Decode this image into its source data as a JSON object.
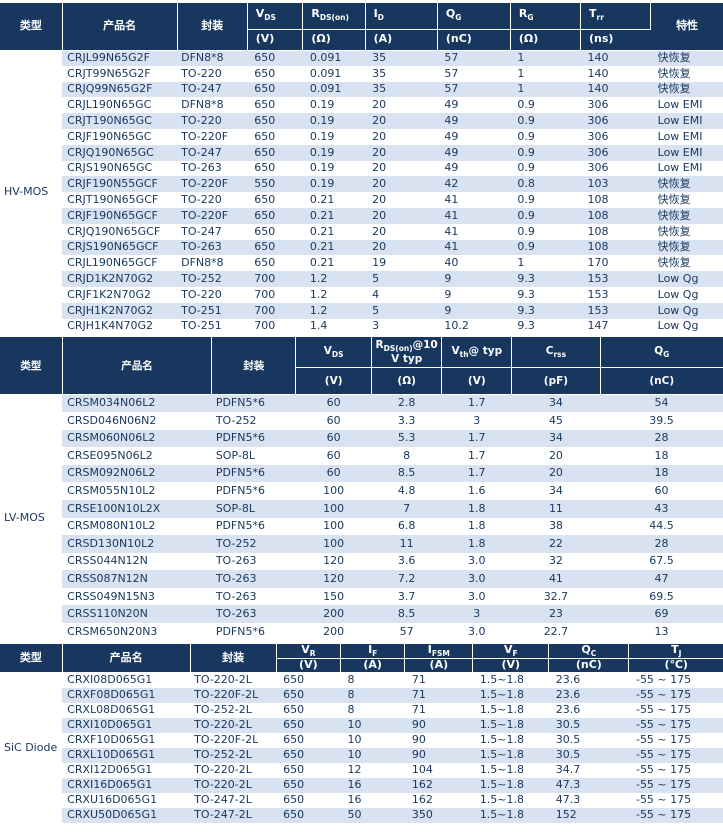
{
  "colors": {
    "header_bg": "#17375e",
    "header_text": "#ffffff",
    "row_alt": "#d9e2f1",
    "row_white": "#ffffff",
    "text": "#17375e",
    "page_bg": "#ffffff"
  },
  "sections": [
    {
      "key": "hv-mos",
      "type_label": "HV-MOS",
      "cols": [
        {
          "w": 8.6,
          "plain": true,
          "key": "type",
          "label": "类型"
        },
        {
          "w": 15.9,
          "plain": true,
          "key": "name",
          "label": "产品名",
          "cls": "name"
        },
        {
          "w": 9.7,
          "plain": true,
          "key": "pkg",
          "label": "封装",
          "cls": "pkg"
        },
        {
          "w": 7.7,
          "key": "vds",
          "main": "V",
          "sub": "DS",
          "unit": "(V)",
          "cls": "num"
        },
        {
          "w": 8.6,
          "key": "rds-on",
          "main": "R",
          "sub": "DS(on)",
          "unit": "(Ω)",
          "cls": "num"
        },
        {
          "w": 10.0,
          "key": "id",
          "main": "I",
          "sub": "D",
          "unit": "(A)",
          "cls": "num"
        },
        {
          "w": 10.1,
          "key": "qg",
          "main": "Q",
          "sub": "G",
          "unit": "(nC)",
          "cls": "num"
        },
        {
          "w": 9.7,
          "key": "rg",
          "main": "R",
          "sub": "G",
          "unit": "(Ω)",
          "cls": "num"
        },
        {
          "w": 9.7,
          "key": "trr",
          "main": "T",
          "sub": "rr",
          "unit": "(ns)",
          "cls": "num"
        },
        {
          "w": 10.0,
          "plain": true,
          "key": "feature",
          "label": "特性",
          "cls": "feat"
        }
      ],
      "rows": [
        [
          "CRJL99N65G2F",
          "DFN8*8",
          "650",
          "0.091",
          "35",
          "57",
          "1",
          "140",
          "快恢复"
        ],
        [
          "CRJT99N65G2F",
          "TO-220",
          "650",
          "0.091",
          "35",
          "57",
          "1",
          "140",
          "快恢复"
        ],
        [
          "CRJQ99N65G2F",
          "TO-247",
          "650",
          "0.091",
          "35",
          "57",
          "1",
          "140",
          "快恢复"
        ],
        [
          "CRJL190N65GC",
          "DFN8*8",
          "650",
          "0.19",
          "20",
          "49",
          "0.9",
          "306",
          "Low EMI"
        ],
        [
          "CRJT190N65GC",
          "TO-220",
          "650",
          "0.19",
          "20",
          "49",
          "0.9",
          "306",
          "Low EMI"
        ],
        [
          "CRJF190N65GC",
          "TO-220F",
          "650",
          "0.19",
          "20",
          "49",
          "0.9",
          "306",
          "Low EMI"
        ],
        [
          "CRJQ190N65GC",
          "TO-247",
          "650",
          "0.19",
          "20",
          "49",
          "0.9",
          "306",
          "Low EMI"
        ],
        [
          "CRJS190N65GC",
          "TO-263",
          "650",
          "0.19",
          "20",
          "49",
          "0.9",
          "306",
          "Low EMI"
        ],
        [
          "CRJF190N55GCF",
          "TO-220F",
          "550",
          "0.19",
          "20",
          "42",
          "0.8",
          "103",
          "快恢复"
        ],
        [
          "CRJT190N65GCF",
          "TO-220",
          "650",
          "0.21",
          "20",
          "41",
          "0.9",
          "108",
          "快恢复"
        ],
        [
          "CRJF190N65GCF",
          "TO-220F",
          "650",
          "0.21",
          "20",
          "41",
          "0.9",
          "108",
          "快恢复"
        ],
        [
          "CRJQ190N65GCF",
          "TO-247",
          "650",
          "0.21",
          "20",
          "41",
          "0.9",
          "108",
          "快恢复"
        ],
        [
          "CRJS190N65GCF",
          "TO-263",
          "650",
          "0.21",
          "20",
          "41",
          "0.9",
          "108",
          "快恢复"
        ],
        [
          "CRJL190N65GCF",
          "DFN8*8",
          "650",
          "0.21",
          "19",
          "40",
          "1",
          "170",
          "快恢复"
        ],
        [
          "CRJD1K2N70G2",
          "TO-252",
          "700",
          "1.2",
          "5",
          "9",
          "9.3",
          "153",
          "Low Qg"
        ],
        [
          "CRJF1K2N70G2",
          "TO-220",
          "700",
          "1.2",
          "4",
          "9",
          "9.3",
          "153",
          "Low Qg"
        ],
        [
          "CRJH1K2N70G2",
          "TO-251",
          "700",
          "1.2",
          "5",
          "9",
          "9.3",
          "153",
          "Low Qg"
        ],
        [
          "CRJH1K4N70G2",
          "TO-251",
          "700",
          "1.4",
          "3",
          "10.2",
          "9.3",
          "147",
          "Low Qg"
        ]
      ]
    },
    {
      "key": "lv-mos",
      "type_label": "LV-MOS",
      "cols": [
        {
          "w": 8.6,
          "plain": true,
          "key": "type",
          "label": "类型"
        },
        {
          "w": 20.7,
          "plain": true,
          "key": "name",
          "label": "产品名",
          "cls": "name"
        },
        {
          "w": 11.6,
          "plain": true,
          "key": "pkg",
          "label": "封装",
          "cls": "pkg"
        },
        {
          "w": 10.5,
          "key": "vds",
          "main": "V",
          "sub": "DS",
          "unit": "(V)",
          "cls": "num"
        },
        {
          "w": 9.7,
          "key": "rds-on-10v",
          "main": "R",
          "sub": "DS(on)",
          "rest": "@10",
          "line2": "V typ",
          "unit": "(Ω)",
          "cls": "num"
        },
        {
          "w": 9.7,
          "key": "vth",
          "main": "V",
          "sub": "th",
          "rest": "@ typ",
          "unit": "(V)",
          "cls": "num"
        },
        {
          "w": 12.2,
          "key": "crss",
          "main": "C",
          "sub": "rss",
          "unit": "(pF)",
          "cls": "num"
        },
        {
          "w": 17.0,
          "key": "qg",
          "main": "Q",
          "sub": "G",
          "unit": "(nC)",
          "cls": "num"
        }
      ],
      "rows": [
        [
          "CRSM034N06L2",
          "PDFN5*6",
          "60",
          "2.8",
          "1.7",
          "34",
          "54"
        ],
        [
          "CRSD046N06N2",
          "TO-252",
          "60",
          "3.3",
          "3",
          "45",
          "39.5"
        ],
        [
          "CRSM060N06L2",
          "PDFN5*6",
          "60",
          "5.3",
          "1.7",
          "34",
          "28"
        ],
        [
          "CRSE095N06L2",
          "SOP-8L",
          "60",
          "8",
          "1.7",
          "20",
          "18"
        ],
        [
          "CRSM092N06L2",
          "PDFN5*6",
          "60",
          "8.5",
          "1.7",
          "20",
          "18"
        ],
        [
          "CRSM055N10L2",
          "PDFN5*6",
          "100",
          "4.8",
          "1.6",
          "34",
          "60"
        ],
        [
          "CRSE100N10L2X",
          "SOP-8L",
          "100",
          "7",
          "1.8",
          "11",
          "43"
        ],
        [
          "CRSM080N10L2",
          "PDFN5*6",
          "100",
          "6.8",
          "1.8",
          "38",
          "44.5"
        ],
        [
          "CRSD130N10L2",
          "TO-252",
          "100",
          "11",
          "1.8",
          "22",
          "28"
        ],
        [
          "CRSS044N12N",
          "TO-263",
          "120",
          "3.6",
          "3.0",
          "32",
          "67.5"
        ],
        [
          "CRSS087N12N",
          "TO-263",
          "120",
          "7.2",
          "3.0",
          "41",
          "47"
        ],
        [
          "CRSS049N15N3",
          "TO-263",
          "150",
          "3.7",
          "3.0",
          "32.7",
          "69.5"
        ],
        [
          "CRSS110N20N",
          "TO-263",
          "200",
          "8.5",
          "3",
          "23",
          "69"
        ],
        [
          "CRSM650N20N3",
          "PDFN5*6",
          "200",
          "57",
          "3.0",
          "22.7",
          "13"
        ]
      ]
    },
    {
      "key": "sic-diode",
      "type_label": "SiC Diode",
      "cols": [
        {
          "w": 8.6,
          "plain": true,
          "key": "type",
          "label": "类型"
        },
        {
          "w": 17.7,
          "plain": true,
          "key": "name",
          "label": "产品名",
          "cls": "name"
        },
        {
          "w": 11.9,
          "plain": true,
          "key": "pkg",
          "label": "封装",
          "cls": "pkg"
        },
        {
          "w": 8.9,
          "key": "vr",
          "main": "V",
          "sub": "R",
          "unit": "(V)",
          "cls": "num"
        },
        {
          "w": 8.9,
          "key": "if",
          "main": "I",
          "sub": "F",
          "unit": "(A)",
          "cls": "num"
        },
        {
          "w": 9.4,
          "key": "ifsm",
          "main": "I",
          "sub": "FSM",
          "unit": "(A)",
          "cls": "num"
        },
        {
          "w": 10.5,
          "key": "vf",
          "main": "V",
          "sub": "F",
          "unit": "(V)",
          "cls": "num"
        },
        {
          "w": 11.1,
          "key": "qc",
          "main": "Q",
          "sub": "C",
          "unit": "(nC)",
          "cls": "num"
        },
        {
          "w": 13.0,
          "key": "tj",
          "main": "T",
          "sub": "J",
          "unit": "(℃)",
          "cls": "num"
        }
      ],
      "rows": [
        [
          "CRXI08D065G1",
          "TO-220-2L",
          "650",
          "8",
          "71",
          "1.5~1.8",
          "23.6",
          "-55 ~ 175"
        ],
        [
          "CRXF08D065G1",
          "TO-220F-2L",
          "650",
          "8",
          "71",
          "1.5~1.8",
          "23.6",
          "-55 ~ 175"
        ],
        [
          "CRXL08D065G1",
          "TO-252-2L",
          "650",
          "8",
          "71",
          "1.5~1.8",
          "23.6",
          "-55 ~ 175"
        ],
        [
          "CRXI10D065G1",
          "TO-220-2L",
          "650",
          "10",
          "90",
          "1.5~1.8",
          "30.5",
          "-55 ~ 175"
        ],
        [
          "CRXF10D065G1",
          "TO-220F-2L",
          "650",
          "10",
          "90",
          "1.5~1.8",
          "30.5",
          "-55 ~ 175"
        ],
        [
          "CRXL10D065G1",
          "TO-252-2L",
          "650",
          "10",
          "90",
          "1.5~1.8",
          "30.5",
          "-55 ~ 175"
        ],
        [
          "CRXI12D065G1",
          "TO-220-2L",
          "650",
          "12",
          "104",
          "1.5~1.8",
          "34.7",
          "-55 ~ 175"
        ],
        [
          "CRXI16D065G1",
          "TO-220-2L",
          "650",
          "16",
          "162",
          "1.5~1.8",
          "47.3",
          "-55 ~ 175"
        ],
        [
          "CRXU16D065G1",
          "TO-247-2L",
          "650",
          "16",
          "162",
          "1.5~1.8",
          "47.3",
          "-55 ~ 175"
        ],
        [
          "CRXU50D065G1",
          "TO-247-2L",
          "650",
          "50",
          "350",
          "1.5~1.8",
          "152",
          "-55 ~ 175"
        ]
      ]
    }
  ]
}
